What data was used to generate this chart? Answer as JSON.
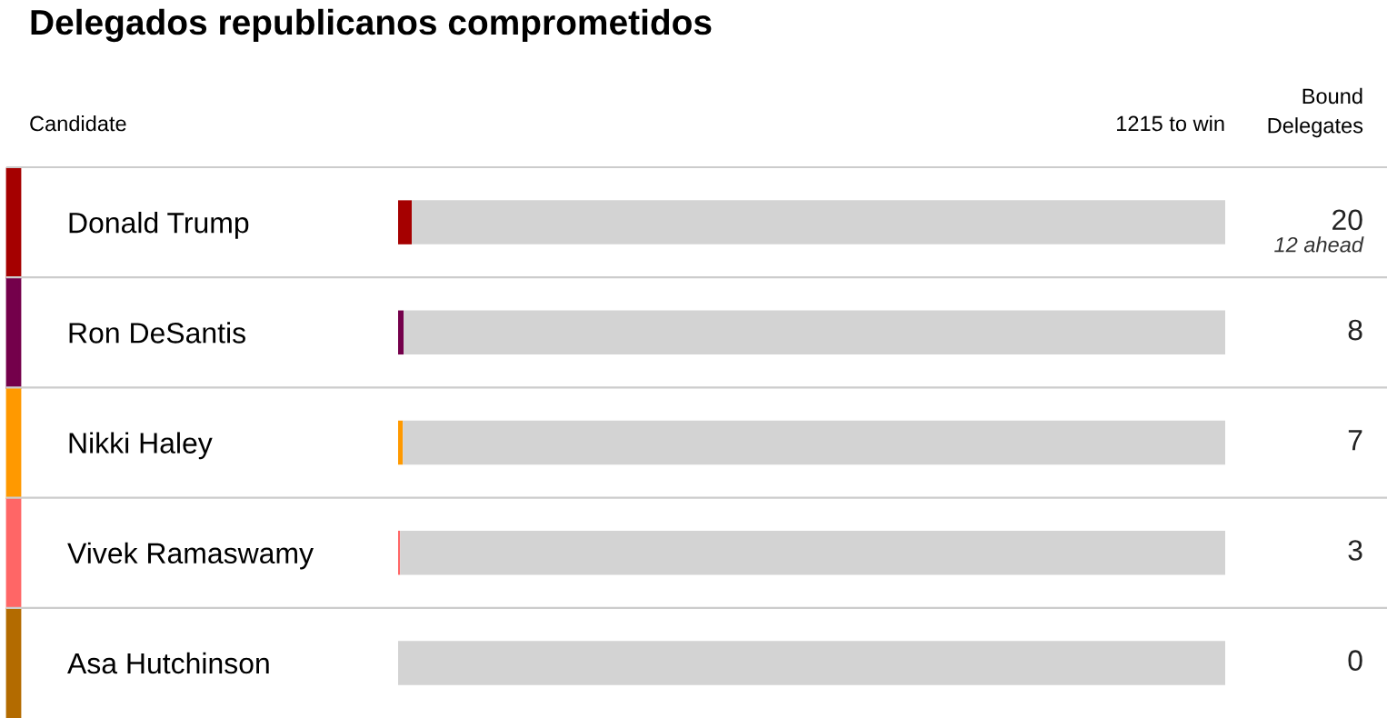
{
  "chart_data": {
    "type": "bar",
    "orientation": "horizontal",
    "stacked": true,
    "title": "Delegados republicanos comprometidos",
    "categories": [
      "Donald Trump",
      "Ron DeSantis",
      "Nikki Haley",
      "Vivek Ramaswamy",
      "Asa Hutchinson"
    ],
    "series": [
      {
        "values": [
          20,
          8,
          7,
          3,
          0
        ],
        "colors": [
          "#a50000",
          "#74004b",
          "#ff9900",
          "#ff6666",
          "#b36b00"
        ],
        "value_labels": [
          "20",
          "8",
          "7",
          "3",
          "0"
        ]
      },
      {
        "values": [
          1195,
          1207,
          1208,
          1212,
          1215
        ],
        "color": "#d3d3d3"
      }
    ],
    "xlim": [
      0,
      1215
    ],
    "annotations": [
      "Candidate",
      "Bound\nDelegates",
      "12 ahead",
      "1215 to win"
    ],
    "grid": false,
    "legend": false
  }
}
